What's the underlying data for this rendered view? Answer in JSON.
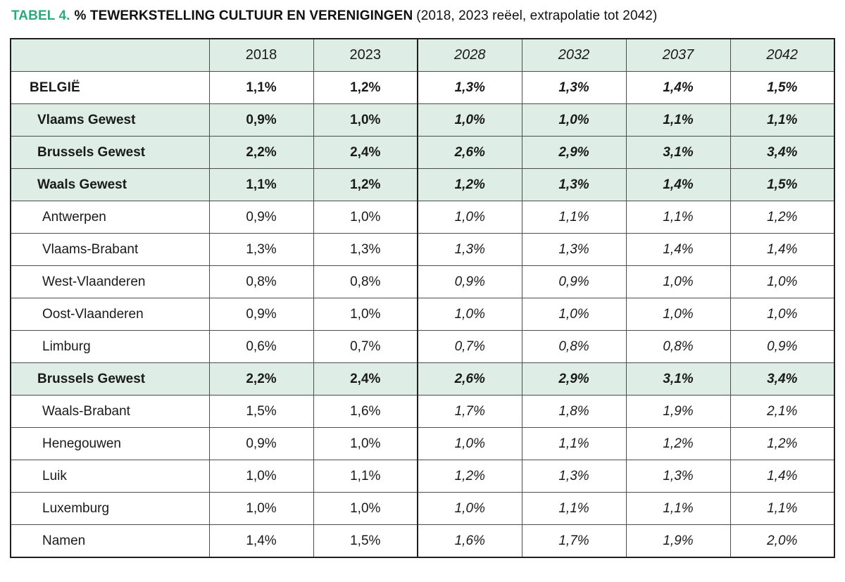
{
  "title": {
    "tag": "TABEL 4.",
    "main": "% TEWERKSTELLING CULTUUR EN VERENIGINGEN",
    "subtitle": "(2018, 2023 reëel, extrapolatie tot 2042)"
  },
  "colors": {
    "accent_green": "#2bab7d",
    "row_green": "#deeee6",
    "text": "#1a1a1a",
    "border_outer": "#1f1f1f",
    "border_inner": "#4d4d4d"
  },
  "table": {
    "columns": [
      "",
      "2018",
      "2023",
      "2028",
      "2032",
      "2037",
      "2042"
    ],
    "real_years": [
      "2018",
      "2023"
    ],
    "extrapolated_years": [
      "2028",
      "2032",
      "2037",
      "2042"
    ],
    "rows": [
      {
        "label": "BELGIË",
        "style": "country",
        "values": [
          "1,1%",
          "1,2%",
          "1,3%",
          "1,3%",
          "1,4%",
          "1,5%"
        ]
      },
      {
        "label": "Vlaams Gewest",
        "style": "region",
        "values": [
          "0,9%",
          "1,0%",
          "1,0%",
          "1,0%",
          "1,1%",
          "1,1%"
        ]
      },
      {
        "label": "Brussels Gewest",
        "style": "region",
        "values": [
          "2,2%",
          "2,4%",
          "2,6%",
          "2,9%",
          "3,1%",
          "3,4%"
        ]
      },
      {
        "label": "Waals Gewest",
        "style": "region",
        "values": [
          "1,1%",
          "1,2%",
          "1,2%",
          "1,3%",
          "1,4%",
          "1,5%"
        ]
      },
      {
        "label": "Antwerpen",
        "style": "province",
        "values": [
          "0,9%",
          "1,0%",
          "1,0%",
          "1,1%",
          "1,1%",
          "1,2%"
        ]
      },
      {
        "label": "Vlaams-Brabant",
        "style": "province",
        "values": [
          "1,3%",
          "1,3%",
          "1,3%",
          "1,3%",
          "1,4%",
          "1,4%"
        ]
      },
      {
        "label": "West-Vlaanderen",
        "style": "province",
        "values": [
          "0,8%",
          "0,8%",
          "0,9%",
          "0,9%",
          "1,0%",
          "1,0%"
        ]
      },
      {
        "label": "Oost-Vlaanderen",
        "style": "province",
        "values": [
          "0,9%",
          "1,0%",
          "1,0%",
          "1,0%",
          "1,0%",
          "1,0%"
        ]
      },
      {
        "label": "Limburg",
        "style": "province",
        "values": [
          "0,6%",
          "0,7%",
          "0,7%",
          "0,8%",
          "0,8%",
          "0,9%"
        ]
      },
      {
        "label": "Brussels Gewest",
        "style": "region",
        "values": [
          "2,2%",
          "2,4%",
          "2,6%",
          "2,9%",
          "3,1%",
          "3,4%"
        ]
      },
      {
        "label": "Waals-Brabant",
        "style": "province",
        "values": [
          "1,5%",
          "1,6%",
          "1,7%",
          "1,8%",
          "1,9%",
          "2,1%"
        ]
      },
      {
        "label": "Henegouwen",
        "style": "province",
        "values": [
          "0,9%",
          "1,0%",
          "1,0%",
          "1,1%",
          "1,2%",
          "1,2%"
        ]
      },
      {
        "label": "Luik",
        "style": "province",
        "values": [
          "1,0%",
          "1,1%",
          "1,2%",
          "1,3%",
          "1,3%",
          "1,4%"
        ]
      },
      {
        "label": "Luxemburg",
        "style": "province",
        "values": [
          "1,0%",
          "1,0%",
          "1,0%",
          "1,1%",
          "1,1%",
          "1,1%"
        ]
      },
      {
        "label": "Namen",
        "style": "province",
        "values": [
          "1,4%",
          "1,5%",
          "1,6%",
          "1,7%",
          "1,9%",
          "2,0%"
        ]
      }
    ]
  }
}
